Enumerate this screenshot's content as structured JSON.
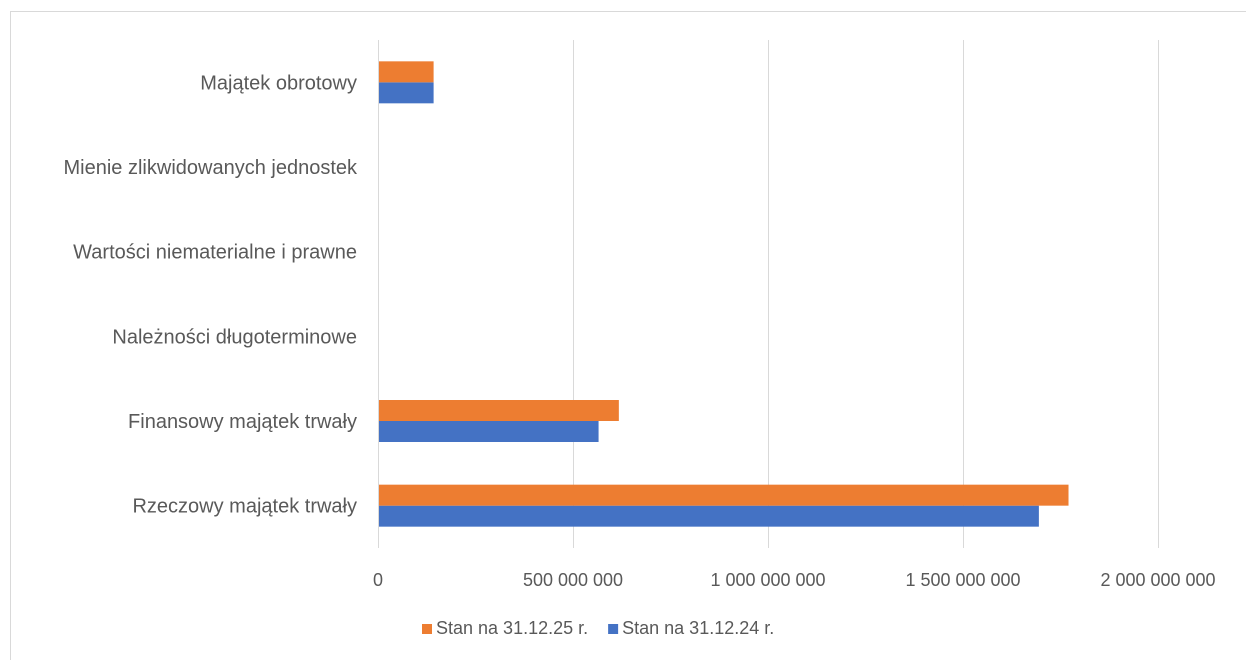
{
  "chart_data": {
    "type": "bar",
    "orientation": "horizontal",
    "categories": [
      "Rzeczowy majątek trwały",
      "Finansowy majątek trwały",
      "Należności długoterminowe",
      "Wartości niematerialne i prawne",
      "Mienie zlikwidowanych jednostek",
      "Majątek obrotowy"
    ],
    "series": [
      {
        "name": "Stan na 31.12.24 r.",
        "color": "#4472c4",
        "values": [
          1692000000,
          563000000,
          0,
          0,
          0,
          140000000
        ]
      },
      {
        "name": "Stan na 31.12.25 r.",
        "color": "#ed7d31",
        "values": [
          1768000000,
          615000000,
          0,
          0,
          0,
          140000000
        ]
      }
    ],
    "xlim": [
      0,
      2000000000
    ],
    "xticks": [
      0,
      500000000,
      1000000000,
      1500000000,
      2000000000
    ],
    "xtick_labels": [
      "0",
      "500 000 000",
      "1 000 000 000",
      "1 500 000 000",
      "2 000 000 000"
    ],
    "legend_order": [
      "Stan na 31.12.25 r.",
      "Stan na 31.12.24 r."
    ],
    "legend_position": "bottom",
    "gridlines": true,
    "gridline_color": "#d9d9d9",
    "title": "",
    "xlabel": "",
    "ylabel": ""
  }
}
